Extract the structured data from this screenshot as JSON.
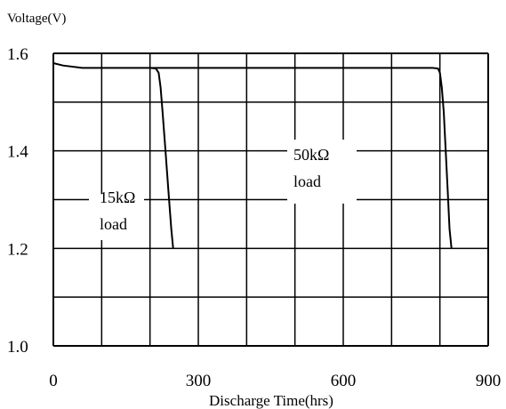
{
  "chart_data": {
    "type": "line",
    "ylabel": "Voltage(V)",
    "xlabel": "Discharge Time(hrs)",
    "xlim": [
      0,
      900
    ],
    "ylim": [
      1.0,
      1.6
    ],
    "x_ticks": [
      "0",
      "300",
      "600",
      "900"
    ],
    "y_ticks": [
      "1.0",
      "1.2",
      "1.4",
      "1.6"
    ],
    "grid": true,
    "series": [
      {
        "name": "15kΩ load",
        "label_lines": [
          "15kΩ",
          "load"
        ],
        "points": [
          [
            0,
            1.58
          ],
          [
            20,
            1.575
          ],
          [
            60,
            1.57
          ],
          [
            120,
            1.57
          ],
          [
            200,
            1.57
          ],
          [
            212,
            1.569
          ],
          [
            218,
            1.56
          ],
          [
            222,
            1.53
          ],
          [
            226,
            1.48
          ],
          [
            232,
            1.4
          ],
          [
            238,
            1.32
          ],
          [
            244,
            1.24
          ],
          [
            248,
            1.2
          ]
        ]
      },
      {
        "name": "50kΩ load",
        "label_lines": [
          "50kΩ",
          "load"
        ],
        "points": [
          [
            200,
            1.57
          ],
          [
            400,
            1.57
          ],
          [
            600,
            1.57
          ],
          [
            785,
            1.57
          ],
          [
            796,
            1.569
          ],
          [
            800,
            1.56
          ],
          [
            804,
            1.53
          ],
          [
            808,
            1.48
          ],
          [
            812,
            1.4
          ],
          [
            816,
            1.32
          ],
          [
            820,
            1.24
          ],
          [
            824,
            1.2
          ]
        ]
      }
    ]
  }
}
